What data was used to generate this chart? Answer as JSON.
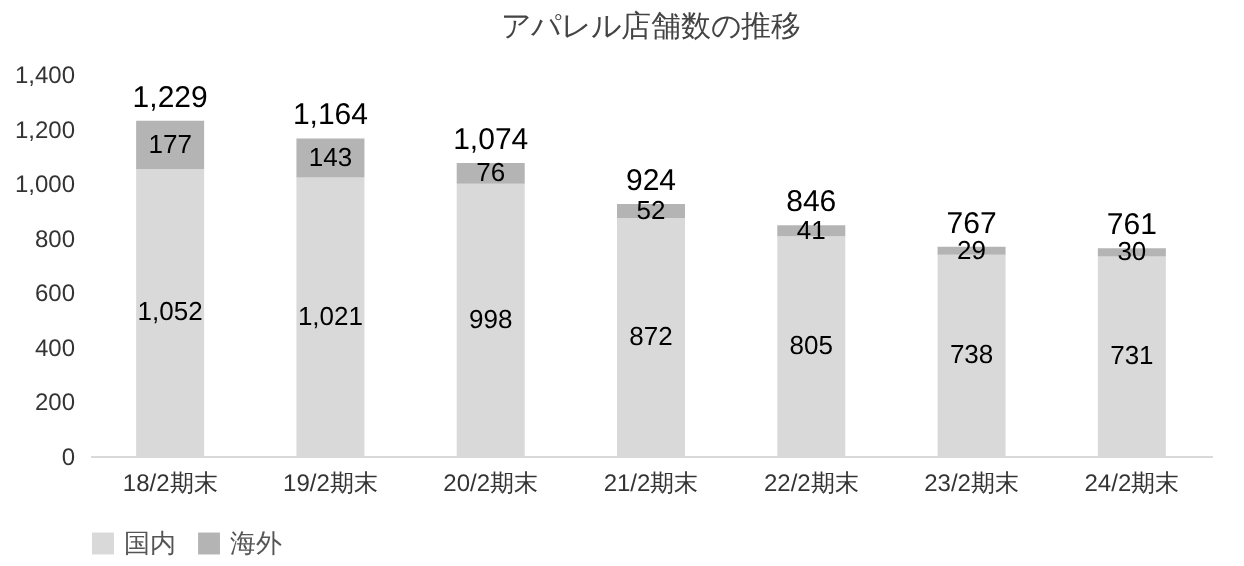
{
  "chart_data": {
    "type": "bar",
    "title": "アパレル店舗数の推移",
    "categories": [
      "18/2期末",
      "19/2期末",
      "20/2期末",
      "21/2期末",
      "22/2期末",
      "23/2期末",
      "24/2期末"
    ],
    "series": [
      {
        "name": "国内",
        "color": "#d9d9d9",
        "values": [
          1052,
          1021,
          998,
          872,
          805,
          738,
          731
        ],
        "value_labels": [
          "1,052",
          "1,021",
          "998",
          "872",
          "805",
          "738",
          "731"
        ]
      },
      {
        "name": "海外",
        "color": "#b4b4b4",
        "values": [
          177,
          143,
          76,
          52,
          41,
          29,
          30
        ],
        "value_labels": [
          "177",
          "143",
          "76",
          "52",
          "41",
          "29",
          "30"
        ]
      }
    ],
    "stacked": true,
    "totals": [
      "1,229",
      "1,164",
      "1,074",
      "924",
      "846",
      "767",
      "761"
    ],
    "ylim": [
      0,
      1400
    ],
    "yticks": [
      0,
      200,
      400,
      600,
      800,
      {
        "value": 1000,
        "label": "1,000"
      },
      {
        "value": 1200,
        "label": "1,200"
      },
      {
        "value": 1400,
        "label": "1,400"
      }
    ],
    "legend": "bottom"
  }
}
